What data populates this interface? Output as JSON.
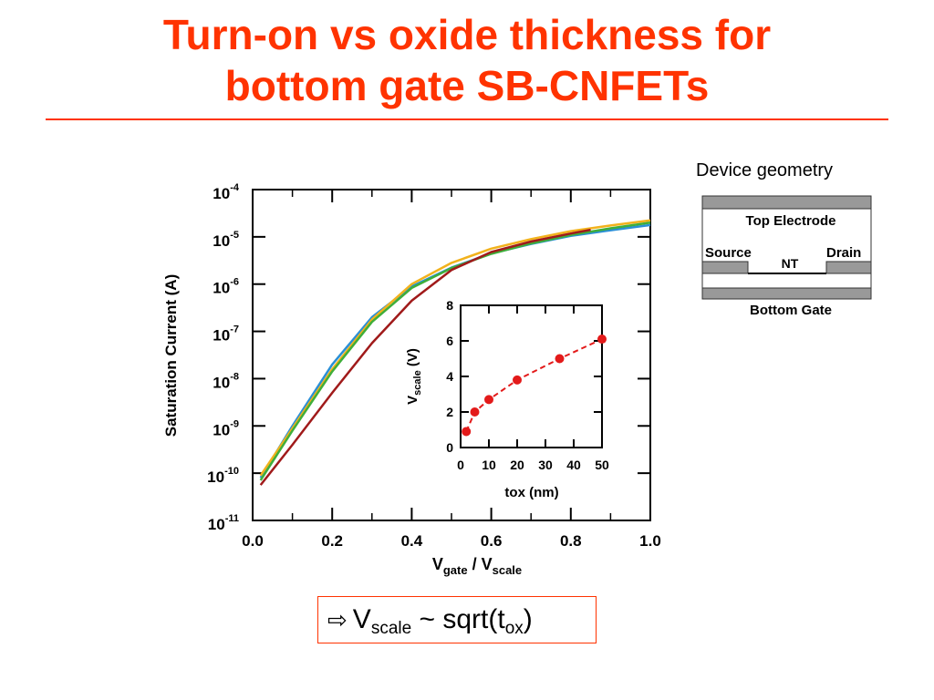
{
  "title": {
    "line1": "Turn-on vs oxide thickness for",
    "line2": "bottom gate SB-CNFETs"
  },
  "colors": {
    "accent": "#ff3300"
  },
  "chart_data": [
    {
      "type": "line",
      "ylabel": "Saturation Current (A)",
      "xlabel": {
        "v1": "V",
        "sub1": "gate",
        "mid": " / V",
        "sub2": "scale"
      },
      "xlim": [
        0.0,
        1.0
      ],
      "ylim_exp": [
        -11,
        -4
      ],
      "y_scale": "log",
      "x_ticks": [
        "0.0",
        "0.2",
        "0.4",
        "0.6",
        "0.8",
        "1.0"
      ],
      "y_ticks": [
        {
          "base": "10",
          "exp": "-4"
        },
        {
          "base": "10",
          "exp": "-5"
        },
        {
          "base": "10",
          "exp": "-6"
        },
        {
          "base": "10",
          "exp": "-7"
        },
        {
          "base": "10",
          "exp": "-8"
        },
        {
          "base": "10",
          "exp": "-9"
        },
        {
          "base": "10",
          "exp": "-10"
        },
        {
          "base": "10",
          "exp": "-11"
        }
      ],
      "series": [
        {
          "color": "#2a8fd6",
          "points": [
            [
              0.02,
              -10.1
            ],
            [
              0.1,
              -9.0
            ],
            [
              0.2,
              -7.7
            ],
            [
              0.3,
              -6.7
            ],
            [
              0.4,
              -6.05
            ],
            [
              0.5,
              -5.65
            ],
            [
              0.6,
              -5.35
            ],
            [
              0.7,
              -5.15
            ],
            [
              0.8,
              -4.98
            ],
            [
              0.9,
              -4.86
            ],
            [
              1.0,
              -4.75
            ]
          ]
        },
        {
          "color": "#f2b21c",
          "points": [
            [
              0.02,
              -10.05
            ],
            [
              0.1,
              -9.05
            ],
            [
              0.2,
              -7.8
            ],
            [
              0.3,
              -6.75
            ],
            [
              0.4,
              -6.0
            ],
            [
              0.5,
              -5.55
            ],
            [
              0.6,
              -5.25
            ],
            [
              0.7,
              -5.05
            ],
            [
              0.8,
              -4.88
            ],
            [
              0.9,
              -4.76
            ],
            [
              1.0,
              -4.65
            ]
          ]
        },
        {
          "color": "#3fae3a",
          "points": [
            [
              0.02,
              -10.15
            ],
            [
              0.1,
              -9.1
            ],
            [
              0.2,
              -7.85
            ],
            [
              0.3,
              -6.8
            ],
            [
              0.4,
              -6.08
            ],
            [
              0.5,
              -5.66
            ],
            [
              0.6,
              -5.36
            ],
            [
              0.7,
              -5.14
            ],
            [
              0.8,
              -4.96
            ],
            [
              0.9,
              -4.82
            ],
            [
              1.0,
              -4.7
            ]
          ]
        },
        {
          "color": "#a01a1a",
          "points": [
            [
              0.02,
              -10.25
            ],
            [
              0.1,
              -9.4
            ],
            [
              0.2,
              -8.3
            ],
            [
              0.3,
              -7.25
            ],
            [
              0.4,
              -6.35
            ],
            [
              0.5,
              -5.7
            ],
            [
              0.6,
              -5.32
            ],
            [
              0.7,
              -5.1
            ],
            [
              0.8,
              -4.93
            ],
            [
              0.85,
              -4.85
            ]
          ]
        }
      ]
    },
    {
      "type": "scatter",
      "ylabel": {
        "v": "V",
        "sub": "scale",
        "rest": " (V)"
      },
      "xlabel": "tox (nm)",
      "xlim": [
        0,
        50
      ],
      "ylim": [
        0,
        8
      ],
      "x_ticks": [
        "0",
        "10",
        "20",
        "30",
        "40",
        "50"
      ],
      "y_ticks": [
        "0",
        "2",
        "4",
        "6",
        "8"
      ],
      "color": "#e31a1a",
      "points": [
        [
          2,
          0.9
        ],
        [
          5,
          2.0
        ],
        [
          10,
          2.7
        ],
        [
          20,
          3.8
        ],
        [
          35,
          5.0
        ],
        [
          50,
          6.1
        ]
      ]
    }
  ],
  "device": {
    "label": "Device geometry",
    "top_electrode": "Top Electrode",
    "source": "Source",
    "drain": "Drain",
    "nt": "NT",
    "bottom_gate": "Bottom Gate"
  },
  "callout": {
    "v": "V",
    "sub1": "scale",
    "mid": " ~ sqrt(t",
    "sub2": "ox",
    "end": ")"
  }
}
